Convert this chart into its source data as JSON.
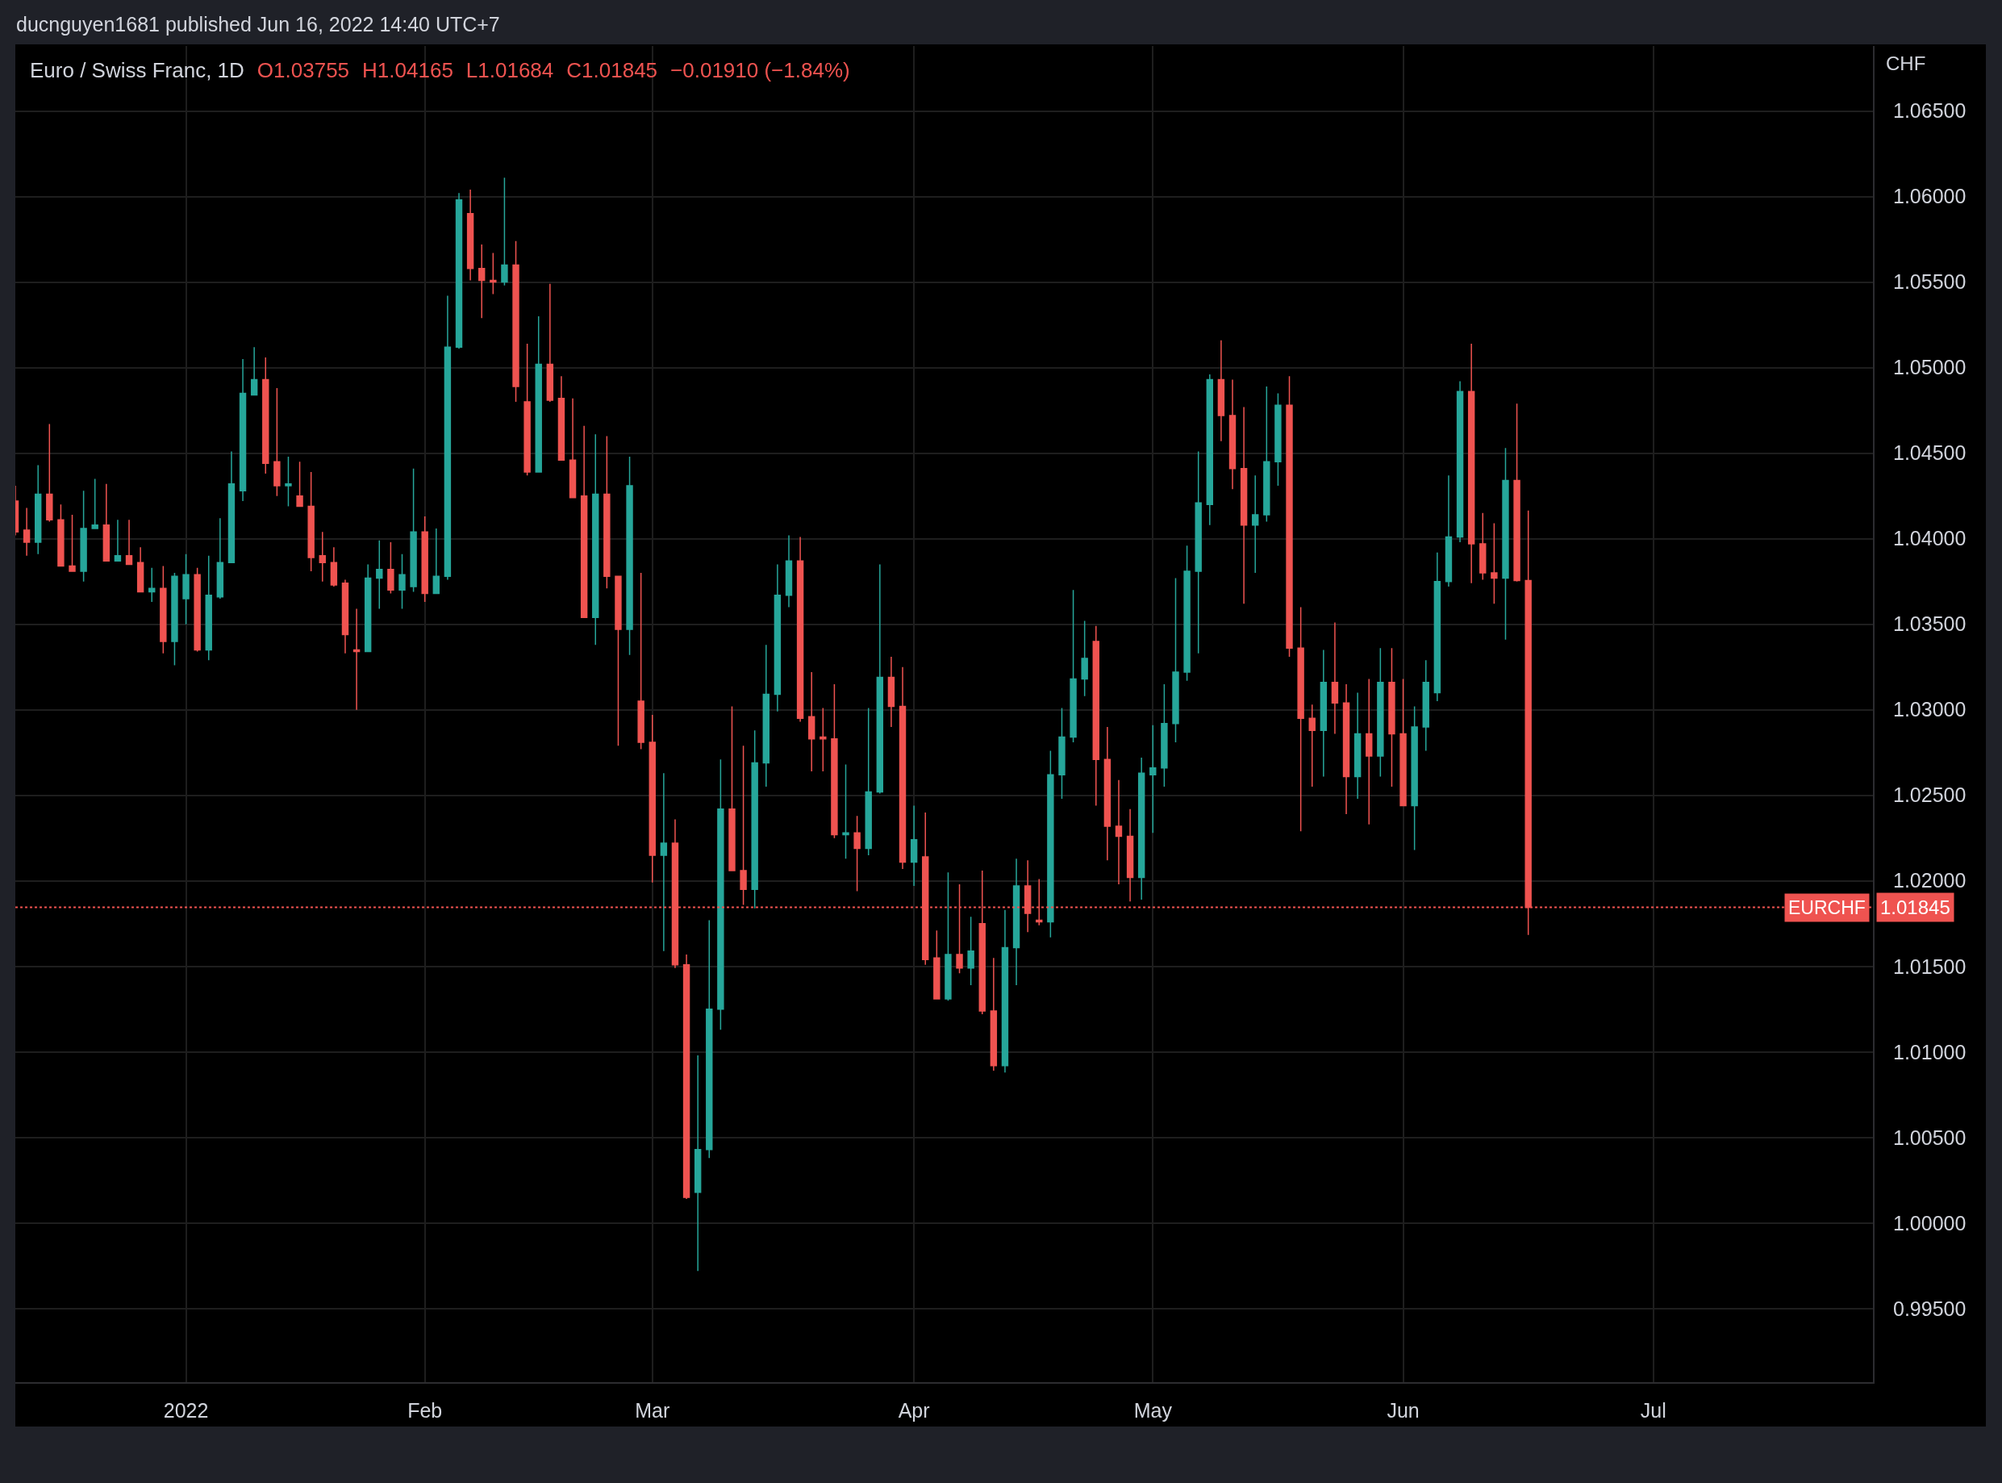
{
  "chart_data": {
    "type": "candlestick",
    "title": "Euro / Swiss Franc, 1D",
    "ylabel": "CHF",
    "annotations": [
      "ducnguyen1681 published Jun 16, 2022 14:40 UTC+7",
      "O1.03755",
      "H1.04165",
      "L1.01684",
      "C1.01845",
      "−0.01910 (−1.84%)",
      "1.01845"
    ],
    "categories": [
      null,
      null,
      null,
      null,
      null,
      null,
      null,
      null,
      null,
      null,
      null,
      null,
      null,
      null,
      null,
      "2022",
      null,
      null,
      null,
      null,
      null,
      null,
      null,
      null,
      null,
      null,
      null,
      null,
      null,
      null,
      null,
      null,
      null,
      null,
      null,
      null,
      "Feb",
      null,
      null,
      null,
      null,
      null,
      null,
      null,
      null,
      null,
      null,
      null,
      null,
      null,
      null,
      null,
      null,
      null,
      null,
      null,
      "Mar",
      null,
      null,
      null,
      null,
      null,
      null,
      null,
      null,
      null,
      null,
      null,
      null,
      null,
      null,
      null,
      null,
      null,
      null,
      null,
      null,
      null,
      null,
      "Apr",
      null,
      null,
      null,
      null,
      null,
      null,
      null,
      null,
      null,
      null,
      null,
      null,
      null,
      null,
      null,
      null,
      null,
      null,
      null,
      null,
      "May",
      null,
      null,
      null,
      null,
      null,
      null,
      null,
      null,
      null,
      null,
      null,
      null,
      null,
      null,
      null,
      null,
      null,
      null,
      null,
      null,
      null,
      "Jun",
      null,
      null,
      null,
      null,
      null,
      null,
      null,
      null,
      null,
      null,
      null,
      null,
      null,
      null,
      null,
      null,
      null,
      null,
      null,
      null,
      null,
      "Jul",
      null,
      null,
      null,
      null,
      null,
      null,
      null,
      null,
      null,
      null,
      null,
      null,
      null,
      null,
      null,
      null,
      null,
      null,
      null
    ],
    "ohlc": [
      [
        1.0422,
        1.0431,
        1.0402,
        1.0404
      ],
      [
        1.0405,
        1.0418,
        1.039,
        1.0398
      ],
      [
        1.0398,
        1.0443,
        1.0391,
        1.0426
      ],
      [
        1.0426,
        1.0467,
        1.041,
        1.0411
      ],
      [
        1.0411,
        1.042,
        1.0384,
        1.0384
      ],
      [
        1.0384,
        1.0414,
        1.0381,
        1.0381
      ],
      [
        1.0381,
        1.0428,
        1.0375,
        1.0406
      ],
      [
        1.0406,
        1.0435,
        1.0406,
        1.0408
      ],
      [
        1.0408,
        1.0432,
        1.0387,
        1.0387
      ],
      [
        1.0387,
        1.0411,
        1.0387,
        1.039
      ],
      [
        1.039,
        1.0411,
        1.0385,
        1.0385
      ],
      [
        1.0386,
        1.0395,
        1.0369,
        1.0369
      ],
      [
        1.0369,
        1.0383,
        1.0363,
        1.0371
      ],
      [
        1.0371,
        1.0384,
        1.0333,
        1.034
      ],
      [
        1.034,
        1.038,
        1.0326,
        1.0378
      ],
      [
        1.0365,
        1.0391,
        1.035,
        1.0379
      ],
      [
        1.0379,
        1.0383,
        1.0334,
        1.0335
      ],
      [
        1.0335,
        1.039,
        1.0329,
        1.0367
      ],
      [
        1.0366,
        1.0412,
        1.0365,
        1.0386
      ],
      [
        1.0386,
        1.0451,
        1.0386,
        1.0432
      ],
      [
        1.0428,
        1.0505,
        1.0422,
        1.0485
      ],
      [
        1.0484,
        1.0512,
        1.0484,
        1.0493
      ],
      [
        1.0493,
        1.0506,
        1.0438,
        1.0444
      ],
      [
        1.0445,
        1.0488,
        1.0425,
        1.0431
      ],
      [
        1.0431,
        1.0448,
        1.0419,
        1.0432
      ],
      [
        1.0425,
        1.0445,
        1.0419,
        1.0419
      ],
      [
        1.0419,
        1.0439,
        1.0381,
        1.0389
      ],
      [
        1.039,
        1.0404,
        1.0375,
        1.0386
      ],
      [
        1.0386,
        1.0395,
        1.0372,
        1.0373
      ],
      [
        1.0374,
        1.0376,
        1.0333,
        1.0344
      ],
      [
        1.0335,
        1.0359,
        1.03,
        1.0334
      ],
      [
        1.0334,
        1.0385,
        1.0334,
        1.0377
      ],
      [
        1.0377,
        1.0399,
        1.0359,
        1.0382
      ],
      [
        1.0382,
        1.0398,
        1.0368,
        1.037
      ],
      [
        1.037,
        1.0391,
        1.0359,
        1.0379
      ],
      [
        1.0372,
        1.0441,
        1.0369,
        1.0404
      ],
      [
        1.0404,
        1.0413,
        1.0363,
        1.0368
      ],
      [
        1.0368,
        1.0406,
        1.0368,
        1.0378
      ],
      [
        1.0378,
        1.0542,
        1.0376,
        1.0512
      ],
      [
        1.0512,
        1.0602,
        1.0511,
        1.0598
      ],
      [
        1.059,
        1.0604,
        1.0551,
        1.0558
      ],
      [
        1.0558,
        1.0572,
        1.0529,
        1.0551
      ],
      [
        1.0551,
        1.0567,
        1.0543,
        1.055
      ],
      [
        1.055,
        1.0611,
        1.0548,
        1.056
      ],
      [
        1.056,
        1.0574,
        1.048,
        1.0489
      ],
      [
        1.048,
        1.0514,
        1.0437,
        1.0439
      ],
      [
        1.0439,
        1.053,
        1.0439,
        1.0502
      ],
      [
        1.0502,
        1.0549,
        1.048,
        1.0481
      ],
      [
        1.0482,
        1.0495,
        1.0446,
        1.0446
      ],
      [
        1.0446,
        1.0482,
        1.0424,
        1.0424
      ],
      [
        1.0425,
        1.0466,
        1.0354,
        1.0354
      ],
      [
        1.0354,
        1.0461,
        1.0338,
        1.0426
      ],
      [
        1.0426,
        1.046,
        1.0371,
        1.0378
      ],
      [
        1.0378,
        1.0378,
        1.0279,
        1.0347
      ],
      [
        1.0347,
        1.0448,
        1.0332,
        1.0431
      ],
      [
        1.0305,
        1.038,
        1.0277,
        1.0281
      ],
      [
        1.0281,
        1.0297,
        1.0199,
        1.0215
      ],
      [
        1.0215,
        1.0263,
        1.0159,
        1.0222
      ],
      [
        1.0222,
        1.0236,
        1.0149,
        1.0151
      ],
      [
        1.0151,
        1.0157,
        1.0014,
        1.0015
      ],
      [
        1.0018,
        1.0098,
        0.9972,
        1.0043
      ],
      [
        1.0043,
        1.0177,
        1.0038,
        1.0125
      ],
      [
        1.0125,
        1.0271,
        1.0113,
        1.0242
      ],
      [
        1.0242,
        1.0302,
        1.0206,
        1.0206
      ],
      [
        1.0206,
        1.0279,
        1.0186,
        1.0195
      ],
      [
        1.0195,
        1.0288,
        1.0184,
        1.0269
      ],
      [
        1.0269,
        1.0338,
        1.0255,
        1.0309
      ],
      [
        1.0309,
        1.0385,
        1.0299,
        1.0367
      ],
      [
        1.0367,
        1.0402,
        1.036,
        1.0387
      ],
      [
        1.0387,
        1.0401,
        1.0293,
        1.0295
      ],
      [
        1.0296,
        1.0322,
        1.0264,
        1.0283
      ],
      [
        1.0284,
        1.0301,
        1.0264,
        1.0283
      ],
      [
        1.0283,
        1.0315,
        1.0225,
        1.0227
      ],
      [
        1.0227,
        1.0268,
        1.0213,
        1.0228
      ],
      [
        1.0228,
        1.0238,
        1.0194,
        1.0219
      ],
      [
        1.0219,
        1.0301,
        1.0215,
        1.0252
      ],
      [
        1.0252,
        1.0385,
        1.0251,
        1.0319
      ],
      [
        1.0319,
        1.0331,
        1.029,
        1.0302
      ],
      [
        1.0302,
        1.0325,
        1.0207,
        1.0211
      ],
      [
        1.0211,
        1.0244,
        1.0197,
        1.0224
      ],
      [
        1.0214,
        1.024,
        1.0151,
        1.0154
      ],
      [
        1.0155,
        1.0171,
        1.0131,
        1.0131
      ],
      [
        1.0131,
        1.0205,
        1.013,
        1.0157
      ],
      [
        1.0157,
        1.0198,
        1.0146,
        1.0149
      ],
      [
        1.0149,
        1.0179,
        1.0139,
        1.0159
      ],
      [
        1.0175,
        1.0206,
        1.0122,
        1.0124
      ],
      [
        1.0124,
        1.0155,
        1.0089,
        1.0092
      ],
      [
        1.0092,
        1.0183,
        1.0088,
        1.0161
      ],
      [
        1.0161,
        1.0213,
        1.0139,
        1.0197
      ],
      [
        1.0197,
        1.0212,
        1.017,
        1.0181
      ],
      [
        1.0177,
        1.0201,
        1.0174,
        1.0176
      ],
      [
        1.0176,
        1.0276,
        1.0167,
        1.0262
      ],
      [
        1.0262,
        1.0301,
        1.0248,
        1.0284
      ],
      [
        1.0284,
        1.037,
        1.0281,
        1.0318
      ],
      [
        1.0318,
        1.0352,
        1.0308,
        1.033
      ],
      [
        1.034,
        1.0349,
        1.0244,
        1.0271
      ],
      [
        1.0271,
        1.029,
        1.0212,
        1.0232
      ],
      [
        1.0232,
        1.0259,
        1.0198,
        1.0226
      ],
      [
        1.0226,
        1.0242,
        1.0188,
        1.0202
      ],
      [
        1.0202,
        1.0272,
        1.0189,
        1.0263
      ],
      [
        1.0262,
        1.0291,
        1.0228,
        1.0266
      ],
      [
        1.0266,
        1.0315,
        1.0255,
        1.0292
      ],
      [
        1.0292,
        1.0377,
        1.0281,
        1.0322
      ],
      [
        1.0322,
        1.0396,
        1.0317,
        1.0381
      ],
      [
        1.0381,
        1.0451,
        1.0333,
        1.0421
      ],
      [
        1.042,
        1.0496,
        1.0408,
        1.0493
      ],
      [
        1.0493,
        1.0516,
        1.0457,
        1.0472
      ],
      [
        1.0472,
        1.0493,
        1.0429,
        1.0441
      ],
      [
        1.0441,
        1.0477,
        1.0362,
        1.0408
      ],
      [
        1.0408,
        1.0437,
        1.038,
        1.0414
      ],
      [
        1.0414,
        1.0489,
        1.041,
        1.0445
      ],
      [
        1.0445,
        1.0485,
        1.0431,
        1.0478
      ],
      [
        1.0478,
        1.0495,
        1.0331,
        1.0336
      ],
      [
        1.0336,
        1.036,
        1.0229,
        1.0295
      ],
      [
        1.0295,
        1.0303,
        1.0255,
        1.0288
      ],
      [
        1.0288,
        1.0335,
        1.0261,
        1.0316
      ],
      [
        1.0316,
        1.0351,
        1.0286,
        1.0304
      ],
      [
        1.0304,
        1.0315,
        1.0239,
        1.0261
      ],
      [
        1.0261,
        1.031,
        1.0248,
        1.0286
      ],
      [
        1.0286,
        1.0318,
        1.0233,
        1.0273
      ],
      [
        1.0273,
        1.0336,
        1.0261,
        1.0316
      ],
      [
        1.0316,
        1.0336,
        1.0255,
        1.0286
      ],
      [
        1.0286,
        1.0318,
        1.0244,
        1.0244
      ],
      [
        1.0244,
        1.0302,
        1.0218,
        1.029
      ],
      [
        1.029,
        1.0329,
        1.0276,
        1.0316
      ],
      [
        1.031,
        1.0392,
        1.0305,
        1.0375
      ],
      [
        1.0375,
        1.0437,
        1.0372,
        1.0401
      ],
      [
        1.0401,
        1.0492,
        1.0398,
        1.0486
      ],
      [
        1.0486,
        1.0514,
        1.0374,
        1.0397
      ],
      [
        1.0397,
        1.0415,
        1.0376,
        1.038
      ],
      [
        1.038,
        1.0409,
        1.0362,
        1.0377
      ],
      [
        1.0377,
        1.0453,
        1.0341,
        1.0434
      ],
      [
        1.0434,
        1.0479,
        1.0375,
        1.03755
      ],
      [
        1.03755,
        1.04165,
        1.01684,
        1.01845
      ],
      null,
      null,
      null,
      null,
      null,
      null,
      null,
      null,
      null,
      null,
      null,
      null,
      null,
      null,
      null,
      null,
      null,
      null,
      null,
      null,
      null,
      null,
      null,
      null,
      null,
      null,
      null,
      null,
      null,
      null
    ],
    "colors": [
      "#ef5350",
      "#ef5350",
      "#26a69a",
      "#ef5350",
      "#ef5350",
      "#ef5350",
      "#26a69a",
      "#26a69a",
      "#ef5350",
      "#26a69a",
      "#ef5350",
      "#ef5350",
      "#26a69a",
      "#ef5350",
      "#26a69a",
      "#26a69a",
      "#ef5350",
      "#26a69a",
      "#26a69a",
      "#26a69a",
      "#26a69a",
      "#26a69a",
      "#ef5350",
      "#ef5350",
      "#26a69a",
      "#ef5350",
      "#ef5350",
      "#ef5350",
      "#ef5350",
      "#ef5350",
      "#ef5350",
      "#26a69a",
      "#26a69a",
      "#ef5350",
      "#26a69a",
      "#26a69a",
      "#ef5350",
      "#26a69a",
      "#26a69a",
      "#26a69a",
      "#ef5350",
      "#ef5350",
      "#ef5350",
      "#26a69a",
      "#ef5350",
      "#ef5350",
      "#26a69a",
      "#ef5350",
      "#ef5350",
      "#ef5350",
      "#ef5350",
      "#26a69a",
      "#ef5350",
      "#ef5350",
      "#26a69a",
      "#ef5350",
      "#ef5350",
      "#26a69a",
      "#ef5350",
      "#ef5350",
      "#26a69a",
      "#26a69a",
      "#26a69a",
      "#ef5350",
      "#ef5350",
      "#26a69a",
      "#26a69a",
      "#26a69a",
      "#26a69a",
      "#ef5350",
      "#ef5350",
      "#ef5350",
      "#ef5350",
      "#26a69a",
      "#ef5350",
      "#26a69a",
      "#26a69a",
      "#ef5350",
      "#ef5350",
      "#26a69a",
      "#ef5350",
      "#ef5350",
      "#26a69a",
      "#ef5350",
      "#26a69a",
      "#ef5350",
      "#ef5350",
      "#26a69a",
      "#26a69a",
      "#ef5350",
      "#ef5350",
      "#26a69a",
      "#26a69a",
      "#26a69a",
      "#26a69a",
      "#ef5350",
      "#ef5350",
      "#ef5350",
      "#ef5350",
      "#26a69a",
      "#26a69a",
      "#26a69a",
      "#26a69a",
      "#26a69a",
      "#26a69a",
      "#26a69a",
      "#ef5350",
      "#ef5350",
      "#ef5350",
      "#26a69a",
      "#26a69a",
      "#26a69a",
      "#ef5350",
      "#ef5350",
      "#ef5350",
      "#26a69a",
      "#ef5350",
      "#ef5350",
      "#26a69a",
      "#ef5350",
      "#26a69a",
      "#ef5350",
      "#ef5350",
      "#26a69a",
      "#26a69a",
      "#26a69a",
      "#26a69a",
      "#26a69a",
      "#ef5350",
      "#ef5350",
      "#ef5350",
      "#26a69a",
      "#ef5350",
      "#ef5350",
      null,
      null,
      null,
      null,
      null,
      null,
      null,
      null,
      null,
      null,
      null,
      null,
      null,
      null,
      null,
      null,
      null,
      null,
      null,
      null,
      null,
      null,
      null,
      null,
      null,
      null,
      null,
      null,
      null,
      null
    ],
    "ylim": [
      0.9907,
      1.0688
    ],
    "yticks": [
      {
        "value": 0.995,
        "label": "0.99500"
      },
      {
        "value": 1.0,
        "label": "1.00000"
      },
      {
        "value": 1.005,
        "label": "1.00500"
      },
      {
        "value": 1.01,
        "label": "1.01000"
      },
      {
        "value": 1.015,
        "label": "1.01500"
      },
      {
        "value": 1.02,
        "label": "1.02000"
      },
      {
        "value": 1.025,
        "label": "1.02500"
      },
      {
        "value": 1.03,
        "label": "1.03000"
      },
      {
        "value": 1.035,
        "label": "1.03500"
      },
      {
        "value": 1.04,
        "label": "1.04000"
      },
      {
        "value": 1.045,
        "label": "1.04500"
      },
      {
        "value": 1.05,
        "label": "1.05000"
      },
      {
        "value": 1.055,
        "label": "1.05500"
      },
      {
        "value": 1.06,
        "label": "1.06000"
      },
      {
        "value": 1.065,
        "label": "1.06500"
      }
    ],
    "grid": true,
    "ref_lines": [
      {
        "axis": "y",
        "value": 1.01845,
        "label": "EURCHF",
        "color": "#ef5350",
        "line_style": "dotted"
      }
    ]
  }
}
